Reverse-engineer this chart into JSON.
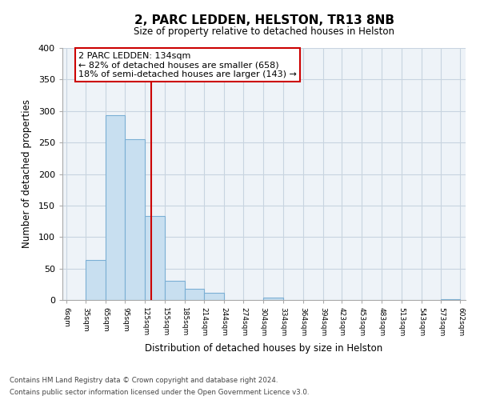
{
  "title": "2, PARC LEDDEN, HELSTON, TR13 8NB",
  "subtitle": "Size of property relative to detached houses in Helston",
  "xlabel": "Distribution of detached houses by size in Helston",
  "ylabel": "Number of detached properties",
  "footnote1": "Contains HM Land Registry data © Crown copyright and database right 2024.",
  "footnote2": "Contains public sector information licensed under the Open Government Licence v3.0.",
  "bar_left_edges": [
    6,
    35,
    65,
    95,
    125,
    155,
    185,
    214,
    244,
    274,
    304,
    334,
    364,
    394,
    423,
    453,
    483,
    513,
    543,
    573
  ],
  "bar_widths": [
    29,
    30,
    30,
    30,
    30,
    30,
    29,
    30,
    30,
    30,
    30,
    30,
    30,
    29,
    30,
    30,
    30,
    30,
    30,
    29
  ],
  "bar_heights": [
    0,
    63,
    293,
    255,
    133,
    30,
    18,
    12,
    0,
    0,
    4,
    0,
    0,
    0,
    0,
    0,
    0,
    0,
    0,
    1
  ],
  "bar_color": "#c8dff0",
  "bar_edgecolor": "#7bafd4",
  "tick_labels": [
    "6sqm",
    "35sqm",
    "65sqm",
    "95sqm",
    "125sqm",
    "155sqm",
    "185sqm",
    "214sqm",
    "244sqm",
    "274sqm",
    "304sqm",
    "334sqm",
    "364sqm",
    "394sqm",
    "423sqm",
    "453sqm",
    "483sqm",
    "513sqm",
    "543sqm",
    "573sqm",
    "602sqm"
  ],
  "tick_positions": [
    6,
    35,
    65,
    95,
    125,
    155,
    185,
    214,
    244,
    274,
    304,
    334,
    364,
    394,
    423,
    453,
    483,
    513,
    543,
    573,
    602
  ],
  "ylim": [
    0,
    400
  ],
  "xlim": [
    0,
    610
  ],
  "yticks": [
    0,
    50,
    100,
    150,
    200,
    250,
    300,
    350,
    400
  ],
  "vline_x": 134,
  "vline_color": "#cc0000",
  "annotation_title": "2 PARC LEDDEN: 134sqm",
  "annotation_line1": "← 82% of detached houses are smaller (658)",
  "annotation_line2": "18% of semi-detached houses are larger (143) →",
  "background_color": "#ffffff",
  "grid_color": "#c8d4e0",
  "axes_bg": "#eef3f8"
}
